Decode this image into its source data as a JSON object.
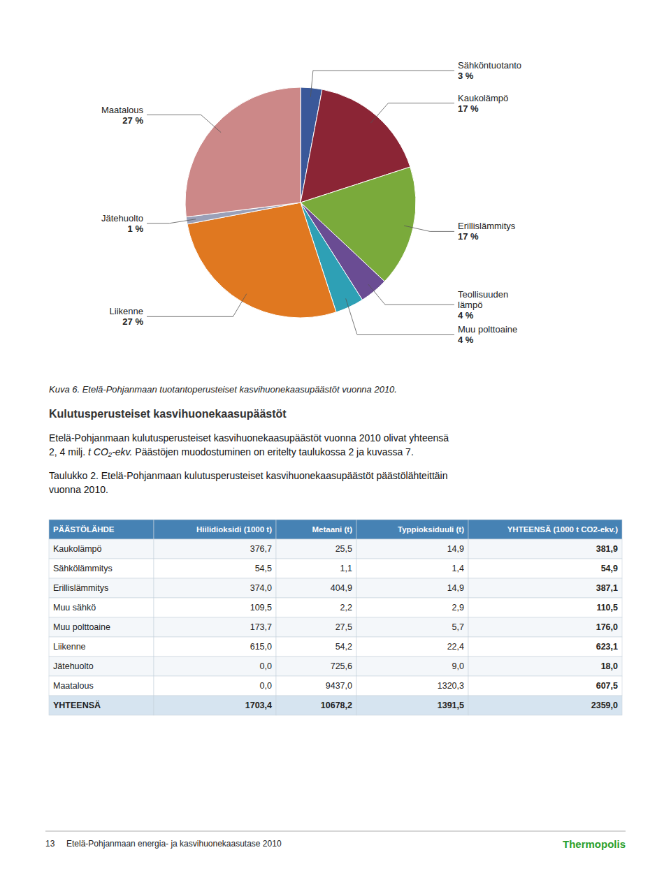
{
  "chart_data": {
    "type": "pie",
    "categories": [
      "Sähköntuotanto",
      "Kaukolämpö",
      "Erillislämmitys",
      "Teollisuuden\nlämpö",
      "Muu polttoaine",
      "Liikenne",
      "Jätehuolto",
      "Maatalous"
    ],
    "values": [
      3,
      17,
      17,
      4,
      4,
      27,
      1,
      27
    ],
    "value_labels": [
      "3 %",
      "17 %",
      "17 %",
      "4 %",
      "4 %",
      "27 %",
      "1 %",
      "27 %"
    ],
    "colors": [
      "#3a5899",
      "#8b2535",
      "#7aaa3b",
      "#6a4c93",
      "#2ea0b5",
      "#e07820",
      "#9aa0b8",
      "#cc8888"
    ],
    "data_labels": true
  },
  "caption": "Kuva 6. Etelä-Pohjanmaan tuotantoperusteiset kasvihuonekaasupäästöt vuonna 2010.",
  "heading": "Kulutusperusteiset kasvihuonekaasupäästöt",
  "paragraphs": [
    {
      "lines": [
        [
          {
            "text": "Etelä-Pohjanmaan kulutusperusteiset kasvihuonekaasupäästöt vuonna 2010 olivat yhteensä"
          }
        ],
        [
          {
            "text": "2, 4 milj. "
          },
          {
            "text": "t CO₂-ekv.",
            "style": "italic"
          },
          {
            "text": " Päästöjen muodostuminen on eritelty taulukossa 2 ja kuvassa 7."
          }
        ]
      ]
    },
    {
      "lines": [
        [
          {
            "text": "Taulukko 2. Etelä-Pohjanmaan kulutusperusteiset kasvihuonekaasupäästöt päästölähteittäin"
          }
        ],
        [
          {
            "text": "vuonna 2010."
          }
        ]
      ]
    }
  ],
  "table": {
    "header": [
      "PÄÄSTÖLÄHDE",
      "Hiilidioksidi (1000 t)",
      "Metaani (t)",
      "Typpioksiduuli (t)",
      "YHTEENSÄ (1000 t CO2-ekv.)"
    ],
    "rows": [
      [
        "Kaukolämpö",
        "376,7",
        "25,5",
        "14,9",
        "381,9"
      ],
      [
        "Sähkölämmitys",
        "54,5",
        "1,1",
        "1,4",
        "54,9"
      ],
      [
        "Erillislämmitys",
        "374,0",
        "404,9",
        "14,9",
        "387,1"
      ],
      [
        "Muu sähkö",
        "109,5",
        "2,2",
        "2,9",
        "110,5"
      ],
      [
        "Muu polttoaine",
        "173,7",
        "27,5",
        "5,7",
        "176,0"
      ],
      [
        "Liikenne",
        "615,0",
        "54,2",
        "22,4",
        "623,1"
      ],
      [
        "Jätehuolto",
        "0,0",
        "725,6",
        "9,0",
        "18,0"
      ],
      [
        "Maatalous",
        "0,0",
        "9437,0",
        "1320,3",
        "607,5"
      ],
      [
        "YHTEENSÄ",
        "1703,4",
        "10678,2",
        "1391,5",
        "2359,0"
      ]
    ]
  },
  "footer": "13     Etelä-Pohjanmaan energia- ja kasvihuonekaasutase 2010",
  "logo": "Thermopolis"
}
